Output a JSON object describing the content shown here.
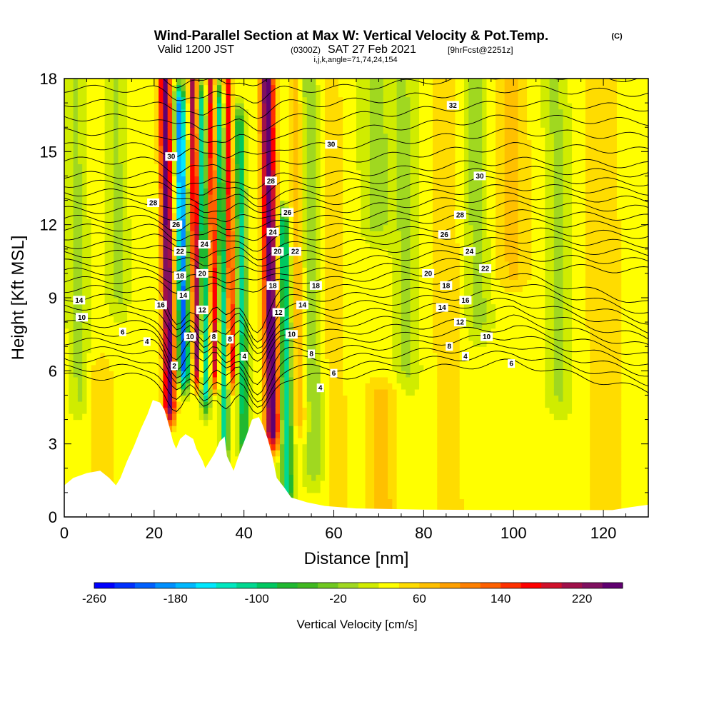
{
  "title": {
    "main": "Wind-Parallel Section at Max W: Vertical Velocity & Pot.Temp.",
    "mark": "(C)",
    "valid_prefix": "Valid 1200 JST",
    "valid_utc": "(0300Z)",
    "valid_date": "SAT 27 Feb 2021",
    "forecast": "[9hrFcst@2251z]",
    "indices": "i,j,k,angle=71,74,24,154"
  },
  "chart_data": {
    "type": "heatmap",
    "xlabel": "Distance [nm]",
    "ylabel": "Height [Kft MSL]",
    "xlim": [
      0,
      130
    ],
    "ylim": [
      0,
      18
    ],
    "x_ticks": [
      0,
      20,
      40,
      60,
      80,
      100,
      120
    ],
    "y_ticks": [
      0,
      3,
      6,
      9,
      12,
      15,
      18
    ],
    "colorbar": {
      "label": "Vertical Velocity [cm/s]",
      "min": -260,
      "max": 260,
      "step": 20,
      "tick_values": [
        -260,
        -180,
        -100,
        -20,
        60,
        140,
        220
      ],
      "colors": [
        "#0000ff",
        "#0030ff",
        "#0060ff",
        "#0090ff",
        "#00b8ff",
        "#00e8ff",
        "#00e8c0",
        "#00d890",
        "#00c860",
        "#20b830",
        "#40b820",
        "#70c820",
        "#a0d820",
        "#d0ec00",
        "#ffff00",
        "#ffdc00",
        "#ffc000",
        "#ffa000",
        "#ff8000",
        "#ff6000",
        "#ff3000",
        "#ff0000",
        "#d0102a",
        "#a0104a",
        "#801060",
        "#600070"
      ]
    },
    "theta_contour_labels": [
      {
        "value": "32",
        "x": 86.5,
        "y": 16.9
      },
      {
        "value": "30",
        "x": 59.4,
        "y": 15.3
      },
      {
        "value": "30",
        "x": 92.5,
        "y": 14.0
      },
      {
        "value": "30",
        "x": 23.8,
        "y": 14.8
      },
      {
        "value": "28",
        "x": 19.8,
        "y": 12.9
      },
      {
        "value": "28",
        "x": 46.0,
        "y": 13.8
      },
      {
        "value": "28",
        "x": 88.1,
        "y": 12.4
      },
      {
        "value": "26",
        "x": 24.9,
        "y": 12.0
      },
      {
        "value": "26",
        "x": 49.7,
        "y": 12.5
      },
      {
        "value": "26",
        "x": 84.6,
        "y": 11.6
      },
      {
        "value": "24",
        "x": 31.2,
        "y": 11.2
      },
      {
        "value": "24",
        "x": 46.4,
        "y": 11.7
      },
      {
        "value": "24",
        "x": 90.2,
        "y": 10.9
      },
      {
        "value": "22",
        "x": 25.8,
        "y": 10.9
      },
      {
        "value": "22",
        "x": 51.4,
        "y": 10.9
      },
      {
        "value": "22",
        "x": 93.7,
        "y": 10.2
      },
      {
        "value": "20",
        "x": 30.7,
        "y": 10.0
      },
      {
        "value": "20",
        "x": 47.5,
        "y": 10.9
      },
      {
        "value": "20",
        "x": 81.0,
        "y": 10.0
      },
      {
        "value": "18",
        "x": 25.8,
        "y": 9.9
      },
      {
        "value": "18",
        "x": 46.4,
        "y": 9.5
      },
      {
        "value": "18",
        "x": 56.0,
        "y": 9.5
      },
      {
        "value": "18",
        "x": 85.0,
        "y": 9.5
      },
      {
        "value": "16",
        "x": 21.5,
        "y": 8.7
      },
      {
        "value": "16",
        "x": 89.3,
        "y": 8.9
      },
      {
        "value": "14",
        "x": 26.5,
        "y": 9.1
      },
      {
        "value": "14",
        "x": 53.0,
        "y": 8.7
      },
      {
        "value": "14",
        "x": 84.1,
        "y": 8.6
      },
      {
        "value": "14",
        "x": 3.3,
        "y": 8.9
      },
      {
        "value": "12",
        "x": 30.7,
        "y": 8.5
      },
      {
        "value": "12",
        "x": 47.7,
        "y": 8.4
      },
      {
        "value": "12",
        "x": 88.1,
        "y": 8.0
      },
      {
        "value": "10",
        "x": 3.9,
        "y": 8.2
      },
      {
        "value": "10",
        "x": 28.0,
        "y": 7.4
      },
      {
        "value": "10",
        "x": 50.6,
        "y": 7.5
      },
      {
        "value": "10",
        "x": 94.0,
        "y": 7.4
      },
      {
        "value": "8",
        "x": 33.3,
        "y": 7.4
      },
      {
        "value": "8",
        "x": 36.9,
        "y": 7.3
      },
      {
        "value": "8",
        "x": 55.0,
        "y": 6.7
      },
      {
        "value": "8",
        "x": 85.7,
        "y": 7.0
      },
      {
        "value": "6",
        "x": 13.0,
        "y": 7.6
      },
      {
        "value": "6",
        "x": 60.0,
        "y": 5.9
      },
      {
        "value": "6",
        "x": 99.5,
        "y": 6.3
      },
      {
        "value": "4",
        "x": 18.4,
        "y": 7.2
      },
      {
        "value": "4",
        "x": 40.1,
        "y": 6.6
      },
      {
        "value": "4",
        "x": 57.0,
        "y": 5.3
      },
      {
        "value": "4",
        "x": 89.3,
        "y": 6.6
      },
      {
        "value": "2",
        "x": 24.5,
        "y": 6.2
      }
    ],
    "terrain_profile": [
      [
        0,
        1.3
      ],
      [
        2,
        1.6
      ],
      [
        5,
        1.8
      ],
      [
        8,
        1.9
      ],
      [
        10,
        1.6
      ],
      [
        11.5,
        1.3
      ],
      [
        12.5,
        1.6
      ],
      [
        14,
        2.3
      ],
      [
        15.5,
        2.9
      ],
      [
        17,
        3.6
      ],
      [
        18.5,
        4.2
      ],
      [
        19.7,
        4.8
      ],
      [
        21.3,
        4.7
      ],
      [
        22.3,
        4.4
      ],
      [
        23.4,
        3.7
      ],
      [
        24.2,
        3.1
      ],
      [
        24.9,
        2.8
      ],
      [
        25.8,
        3.2
      ],
      [
        27,
        3.4
      ],
      [
        28.7,
        3.2
      ],
      [
        29.4,
        2.8
      ],
      [
        30.8,
        2.3
      ],
      [
        31.4,
        2.0
      ],
      [
        33.4,
        2.6
      ],
      [
        34.6,
        3.1
      ],
      [
        35.7,
        3.3
      ],
      [
        36.2,
        2.5
      ],
      [
        37.7,
        1.9
      ],
      [
        38.8,
        2.5
      ],
      [
        40.5,
        3.3
      ],
      [
        41.8,
        4.0
      ],
      [
        43.3,
        4.1
      ],
      [
        44.1,
        3.8
      ],
      [
        45.3,
        3.2
      ],
      [
        46.3,
        2.5
      ],
      [
        47.3,
        1.6
      ],
      [
        49.0,
        1.2
      ],
      [
        50.5,
        0.8
      ],
      [
        54,
        0.6
      ],
      [
        58,
        0.45
      ],
      [
        65,
        0.35
      ],
      [
        80,
        0.3
      ],
      [
        100,
        0.28
      ],
      [
        122,
        0.28
      ],
      [
        126,
        0.4
      ],
      [
        130,
        0.5
      ]
    ]
  }
}
